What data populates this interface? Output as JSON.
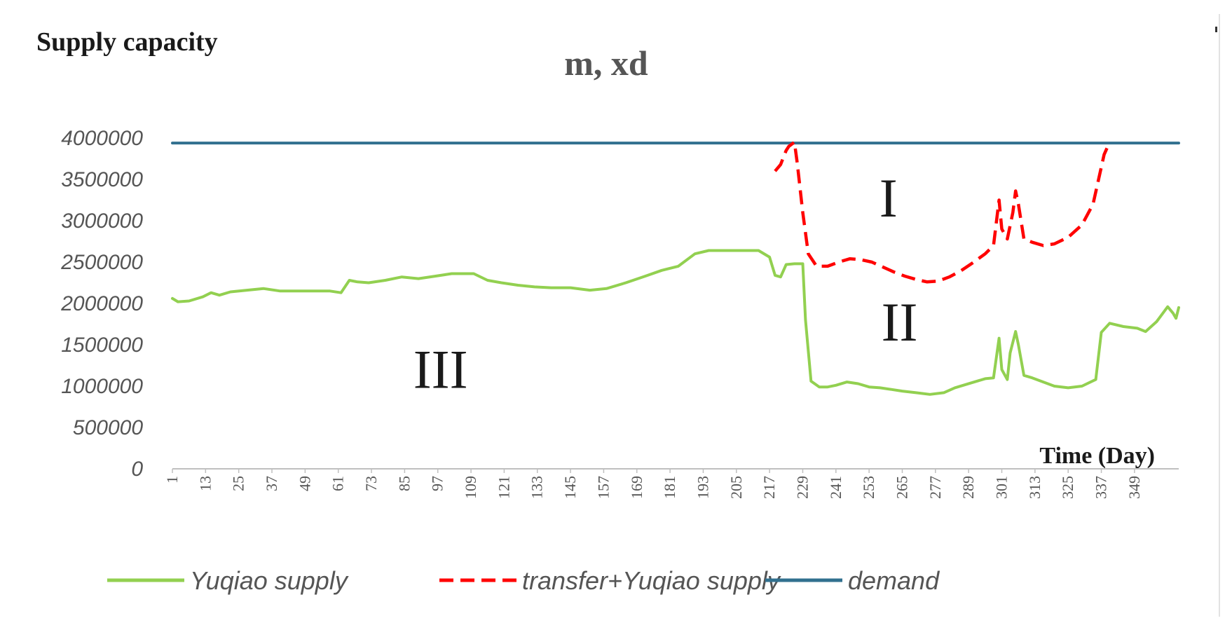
{
  "chart_data": {
    "type": "line",
    "ylabel": "Supply capacity",
    "unit": "m, xd",
    "xlabel": "Time (Day)",
    "xlim": [
      1,
      365
    ],
    "ylim": [
      0,
      4000000
    ],
    "y_ticks": [
      0,
      500000,
      1000000,
      1500000,
      2000000,
      2500000,
      3000000,
      3500000,
      4000000
    ],
    "y_tick_labels": [
      "0",
      "500000",
      "1000000",
      "1500000",
      "2000000",
      "2500000",
      "3000000",
      "3500000",
      "4000000"
    ],
    "x_ticks": [
      1,
      13,
      25,
      37,
      49,
      61,
      73,
      85,
      97,
      109,
      121,
      133,
      145,
      157,
      169,
      181,
      193,
      205,
      217,
      229,
      241,
      253,
      265,
      277,
      289,
      301,
      313,
      325,
      337,
      349
    ],
    "x_tick_labels": [
      "1",
      "13",
      "25",
      "37",
      "49",
      "61",
      "73",
      "85",
      "97",
      "109",
      "121",
      "133",
      "145",
      "157",
      "169",
      "181",
      "193",
      "205",
      "217",
      "229",
      "241",
      "253",
      "265",
      "277",
      "289",
      "301",
      "313",
      "325",
      "337",
      "349"
    ],
    "grid": false,
    "legend_position": "bottom",
    "region_labels": [
      {
        "text": "I",
        "x": 260,
        "y": 3050000
      },
      {
        "text": "II",
        "x": 264,
        "y": 1550000
      },
      {
        "text": "III",
        "x": 98,
        "y": 980000
      }
    ],
    "series": [
      {
        "name": "Yuqiao supply",
        "style": "solid",
        "color": "#92d050",
        "points": [
          [
            1,
            2060000
          ],
          [
            3,
            2020000
          ],
          [
            7,
            2030000
          ],
          [
            12,
            2080000
          ],
          [
            15,
            2130000
          ],
          [
            18,
            2100000
          ],
          [
            22,
            2140000
          ],
          [
            28,
            2160000
          ],
          [
            34,
            2180000
          ],
          [
            40,
            2150000
          ],
          [
            50,
            2150000
          ],
          [
            58,
            2150000
          ],
          [
            62,
            2130000
          ],
          [
            65,
            2280000
          ],
          [
            68,
            2260000
          ],
          [
            72,
            2250000
          ],
          [
            78,
            2280000
          ],
          [
            84,
            2320000
          ],
          [
            90,
            2300000
          ],
          [
            96,
            2330000
          ],
          [
            102,
            2360000
          ],
          [
            110,
            2360000
          ],
          [
            115,
            2280000
          ],
          [
            120,
            2250000
          ],
          [
            126,
            2220000
          ],
          [
            132,
            2200000
          ],
          [
            138,
            2190000
          ],
          [
            145,
            2190000
          ],
          [
            152,
            2160000
          ],
          [
            158,
            2180000
          ],
          [
            165,
            2250000
          ],
          [
            172,
            2330000
          ],
          [
            178,
            2400000
          ],
          [
            184,
            2450000
          ],
          [
            190,
            2600000
          ],
          [
            195,
            2640000
          ],
          [
            200,
            2640000
          ],
          [
            205,
            2640000
          ],
          [
            213,
            2640000
          ],
          [
            217,
            2560000
          ],
          [
            219,
            2340000
          ],
          [
            221,
            2320000
          ],
          [
            223,
            2470000
          ],
          [
            226,
            2480000
          ],
          [
            229,
            2480000
          ],
          [
            230,
            1800000
          ],
          [
            232,
            1060000
          ],
          [
            235,
            990000
          ],
          [
            238,
            990000
          ],
          [
            241,
            1010000
          ],
          [
            245,
            1050000
          ],
          [
            249,
            1030000
          ],
          [
            253,
            990000
          ],
          [
            257,
            980000
          ],
          [
            261,
            960000
          ],
          [
            265,
            940000
          ],
          [
            270,
            920000
          ],
          [
            275,
            900000
          ],
          [
            280,
            920000
          ],
          [
            284,
            980000
          ],
          [
            290,
            1040000
          ],
          [
            295,
            1090000
          ],
          [
            298,
            1100000
          ],
          [
            300,
            1580000
          ],
          [
            301,
            1200000
          ],
          [
            303,
            1080000
          ],
          [
            304,
            1400000
          ],
          [
            306,
            1660000
          ],
          [
            307,
            1500000
          ],
          [
            309,
            1130000
          ],
          [
            312,
            1100000
          ],
          [
            316,
            1050000
          ],
          [
            320,
            1000000
          ],
          [
            325,
            980000
          ],
          [
            330,
            1000000
          ],
          [
            335,
            1080000
          ],
          [
            337,
            1650000
          ],
          [
            340,
            1760000
          ],
          [
            345,
            1720000
          ],
          [
            350,
            1700000
          ],
          [
            353,
            1660000
          ],
          [
            357,
            1780000
          ],
          [
            361,
            1960000
          ],
          [
            363,
            1880000
          ],
          [
            364,
            1820000
          ],
          [
            365,
            1950000
          ]
        ]
      },
      {
        "name": "transfer+Yuqiao supply",
        "style": "dashed",
        "color": "#ff0000",
        "points": [
          [
            219,
            3600000
          ],
          [
            221,
            3680000
          ],
          [
            223,
            3850000
          ],
          [
            224,
            3900000
          ],
          [
            226,
            3950000
          ],
          [
            227,
            3700000
          ],
          [
            229,
            3100000
          ],
          [
            231,
            2600000
          ],
          [
            234,
            2450000
          ],
          [
            238,
            2450000
          ],
          [
            242,
            2500000
          ],
          [
            246,
            2540000
          ],
          [
            250,
            2530000
          ],
          [
            254,
            2500000
          ],
          [
            258,
            2440000
          ],
          [
            262,
            2380000
          ],
          [
            266,
            2330000
          ],
          [
            270,
            2290000
          ],
          [
            274,
            2260000
          ],
          [
            278,
            2270000
          ],
          [
            282,
            2320000
          ],
          [
            286,
            2390000
          ],
          [
            290,
            2480000
          ],
          [
            295,
            2600000
          ],
          [
            298,
            2700000
          ],
          [
            300,
            3250000
          ],
          [
            301,
            2900000
          ],
          [
            303,
            2780000
          ],
          [
            305,
            3100000
          ],
          [
            306,
            3360000
          ],
          [
            307,
            3200000
          ],
          [
            309,
            2780000
          ],
          [
            312,
            2740000
          ],
          [
            316,
            2700000
          ],
          [
            320,
            2720000
          ],
          [
            325,
            2800000
          ],
          [
            330,
            2950000
          ],
          [
            334,
            3200000
          ],
          [
            336,
            3500000
          ],
          [
            338,
            3800000
          ],
          [
            340,
            3950000
          ]
        ]
      },
      {
        "name": "demand",
        "style": "solid",
        "color": "#31708f",
        "points": [
          [
            1,
            3940000
          ],
          [
            365,
            3940000
          ]
        ]
      }
    ]
  }
}
